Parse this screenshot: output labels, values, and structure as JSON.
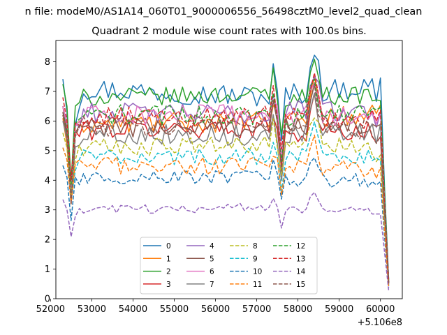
{
  "chart_data": {
    "type": "line",
    "suptitle": "n file: modeM0/AS1A14_060T01_9000006556_56498cztM0_level2_quad_clean",
    "title": "Quadrant 2 module wise count rates with 100.0s bins.",
    "xlabel": "",
    "ylabel": "",
    "x_offset_label": "+5.106e8",
    "xlim": [
      52130,
      60530
    ],
    "ylim": [
      0,
      8.72
    ],
    "x_ticks": [
      52000,
      53000,
      54000,
      55000,
      56000,
      57000,
      58000,
      59000,
      60000
    ],
    "x_tick_labels": [
      "52000",
      "53000",
      "54000",
      "55000",
      "56000",
      "57000",
      "58000",
      "59000",
      "60000"
    ],
    "y_ticks": [
      0,
      1,
      2,
      3,
      4,
      5,
      6,
      7,
      8
    ],
    "y_tick_labels": [
      "0",
      "1",
      "2",
      "3",
      "4",
      "5",
      "6",
      "7",
      "8"
    ],
    "grid": false,
    "legend_position": "lower-center",
    "legend_columns": 4,
    "x_start": 52300,
    "x_step": 100,
    "series": [
      {
        "name": "0",
        "color": "#1f77b4",
        "dash": "solid",
        "amp": 0.38,
        "values": [
          7.42,
          6.3,
          4.7,
          3.8,
          6.2,
          7.1,
          6.8,
          6.9,
          7.2
        ]
      },
      {
        "name": "1",
        "color": "#ff7f0e",
        "dash": "solid",
        "amp": 0.35,
        "values": [
          6.1,
          5.2,
          4.5,
          3.6,
          5.5,
          5.9,
          6.0,
          6.1,
          6.2
        ]
      },
      {
        "name": "2",
        "color": "#2ca02c",
        "dash": "solid",
        "amp": 0.3,
        "values": [
          7.25,
          6.5,
          5.2,
          4.0,
          6.3,
          6.8,
          6.9,
          6.8,
          6.9
        ]
      },
      {
        "name": "3",
        "color": "#d62728",
        "dash": "solid",
        "amp": 0.35,
        "values": [
          6.5,
          5.6,
          4.7,
          3.7,
          5.5,
          5.7,
          5.8,
          5.6,
          5.6
        ]
      },
      {
        "name": "4",
        "color": "#9467bd",
        "dash": "solid",
        "amp": 0.35,
        "values": [
          6.5,
          5.8,
          4.7,
          3.6,
          5.9,
          6.3,
          6.2,
          6.4,
          6.3
        ]
      },
      {
        "name": "5",
        "color": "#8c564b",
        "dash": "solid",
        "amp": 0.35,
        "values": [
          6.2,
          5.5,
          4.5,
          3.5,
          5.6,
          5.8,
          5.8,
          5.9,
          5.8
        ]
      },
      {
        "name": "6",
        "color": "#e377c2",
        "dash": "solid",
        "amp": 0.35,
        "values": [
          6.5,
          5.9,
          4.8,
          3.6,
          5.9,
          6.2,
          6.2,
          6.2,
          6.1
        ]
      },
      {
        "name": "7",
        "color": "#7f7f7f",
        "dash": "solid",
        "amp": 0.35,
        "values": [
          6.0,
          5.4,
          4.4,
          3.4,
          5.3,
          5.6,
          5.5,
          5.6,
          5.6
        ]
      },
      {
        "name": "8",
        "color": "#bcbd22",
        "dash": "dashed",
        "amp": 0.3,
        "values": [
          5.6,
          5.1,
          4.2,
          3.3,
          4.9,
          5.1,
          5.2,
          5.2,
          5.1
        ]
      },
      {
        "name": "9",
        "color": "#17becf",
        "dash": "dashed",
        "amp": 0.28,
        "values": [
          5.1,
          4.7,
          4.0,
          3.2,
          4.6,
          4.8,
          4.8,
          4.8,
          4.8
        ]
      },
      {
        "name": "10",
        "color": "#1f77b4",
        "dash": "dashed",
        "amp": 0.25,
        "values": [
          4.5,
          4.1,
          3.4,
          2.5,
          3.9,
          4.1,
          4.1,
          4.0,
          4.0
        ]
      },
      {
        "name": "11",
        "color": "#ff7f0e",
        "dash": "dashed",
        "amp": 0.3,
        "values": [
          5.1,
          4.7,
          3.9,
          3.0,
          4.4,
          4.5,
          4.5,
          4.4,
          4.4
        ]
      },
      {
        "name": "12",
        "color": "#2ca02c",
        "dash": "dashed",
        "amp": 0.35,
        "values": [
          6.3,
          5.7,
          4.7,
          3.6,
          5.8,
          6.2,
          6.2,
          6.2,
          6.3
        ]
      },
      {
        "name": "13",
        "color": "#d62728",
        "dash": "dashed",
        "amp": 0.35,
        "values": [
          6.8,
          6.0,
          4.9,
          3.7,
          5.9,
          6.1,
          6.2,
          6.1,
          6.1
        ]
      },
      {
        "name": "14",
        "color": "#9467bd",
        "dash": "dashed",
        "amp": 0.15,
        "values": [
          3.35,
          3.0,
          2.5,
          1.95,
          2.8,
          3.0,
          3.1,
          3.0,
          3.0
        ]
      },
      {
        "name": "15",
        "color": "#8c564b",
        "dash": "dashed",
        "amp": 0.35,
        "values": [
          6.3,
          5.5,
          4.6,
          3.5,
          5.6,
          5.8,
          5.9,
          5.8,
          5.7
        ]
      }
    ]
  }
}
